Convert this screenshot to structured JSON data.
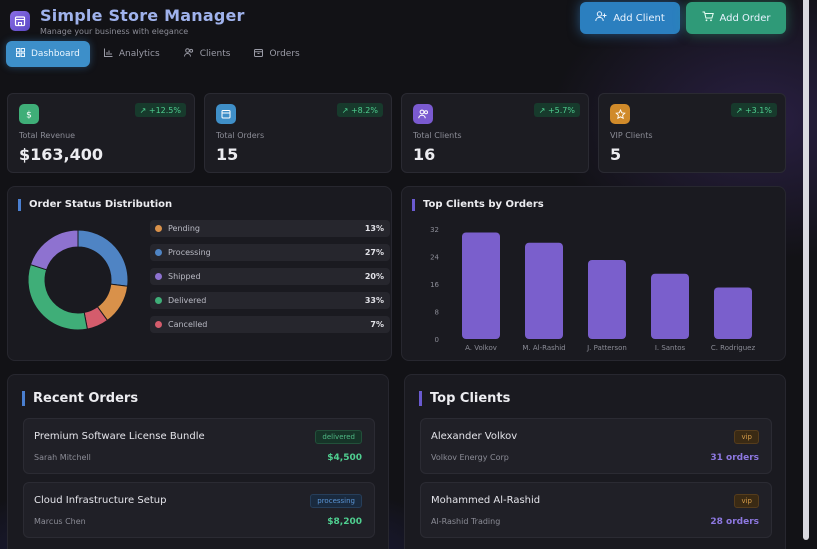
{
  "header": {
    "title": "Simple Store Manager",
    "subtitle": "Manage your business with elegance",
    "add_client_label": "Add Client",
    "add_order_label": "Add Order"
  },
  "tabs": [
    {
      "label": "Dashboard",
      "icon": "grid-icon",
      "active": true
    },
    {
      "label": "Analytics",
      "icon": "bar-chart-icon",
      "active": false
    },
    {
      "label": "Clients",
      "icon": "users-icon",
      "active": false
    },
    {
      "label": "Orders",
      "icon": "box-icon",
      "active": false
    }
  ],
  "stats": [
    {
      "label": "Total Revenue",
      "value": "$163,400",
      "trend": "↗ +12.5%",
      "icon": "dollar-icon",
      "color": "#3fae78"
    },
    {
      "label": "Total Orders",
      "value": "15",
      "trend": "↗ +8.2%",
      "icon": "box-icon",
      "color": "#3f8fc8"
    },
    {
      "label": "Total Clients",
      "value": "16",
      "trend": "↗ +5.7%",
      "icon": "users-icon",
      "color": "#7a5ad0"
    },
    {
      "label": "VIP Clients",
      "value": "5",
      "trend": "↗ +3.1%",
      "icon": "star-icon",
      "color": "#d08a2a"
    }
  ],
  "order_status": {
    "title": "Order Status Distribution",
    "chart_data": {
      "type": "pie",
      "categories": [
        "Pending",
        "Processing",
        "Shipped",
        "Delivered",
        "Cancelled"
      ],
      "values": [
        13,
        27,
        20,
        33,
        7
      ],
      "colors": [
        "#d9914a",
        "#4f84c4",
        "#8e72d0",
        "#3fae78",
        "#d45c6c"
      ]
    },
    "items": [
      {
        "label": "Pending",
        "pct": "13%",
        "color": "#d9914a"
      },
      {
        "label": "Processing",
        "pct": "27%",
        "color": "#4f84c4"
      },
      {
        "label": "Shipped",
        "pct": "20%",
        "color": "#8e72d0"
      },
      {
        "label": "Delivered",
        "pct": "33%",
        "color": "#3fae78"
      },
      {
        "label": "Cancelled",
        "pct": "7%",
        "color": "#d45c6c"
      }
    ]
  },
  "top_clients_chart": {
    "title": "Top Clients by Orders",
    "chart_data": {
      "type": "bar",
      "categories": [
        "A. Volkov",
        "M. Al-Rashid",
        "J. Patterson",
        "I. Santos",
        "C. Rodriguez"
      ],
      "values": [
        31,
        28,
        23,
        19,
        15
      ],
      "ylim": [
        0,
        32
      ],
      "yticks": [
        0,
        8,
        16,
        24,
        32
      ],
      "color": "#7a5fcc"
    }
  },
  "recent_orders": {
    "title": "Recent Orders",
    "items": [
      {
        "name": "Premium Software License Bundle",
        "client": "Sarah Mitchell",
        "status": "delivered",
        "amount": "$4,500"
      },
      {
        "name": "Cloud Infrastructure Setup",
        "client": "Marcus Chen",
        "status": "processing",
        "amount": "$8,200"
      }
    ]
  },
  "top_clients": {
    "title": "Top Clients",
    "items": [
      {
        "name": "Alexander Volkov",
        "company": "Volkov Energy Corp",
        "badge": "vip",
        "orders": "31 orders"
      },
      {
        "name": "Mohammed Al-Rashid",
        "company": "Al-Rashid Trading",
        "badge": "vip",
        "orders": "28 orders"
      }
    ]
  }
}
